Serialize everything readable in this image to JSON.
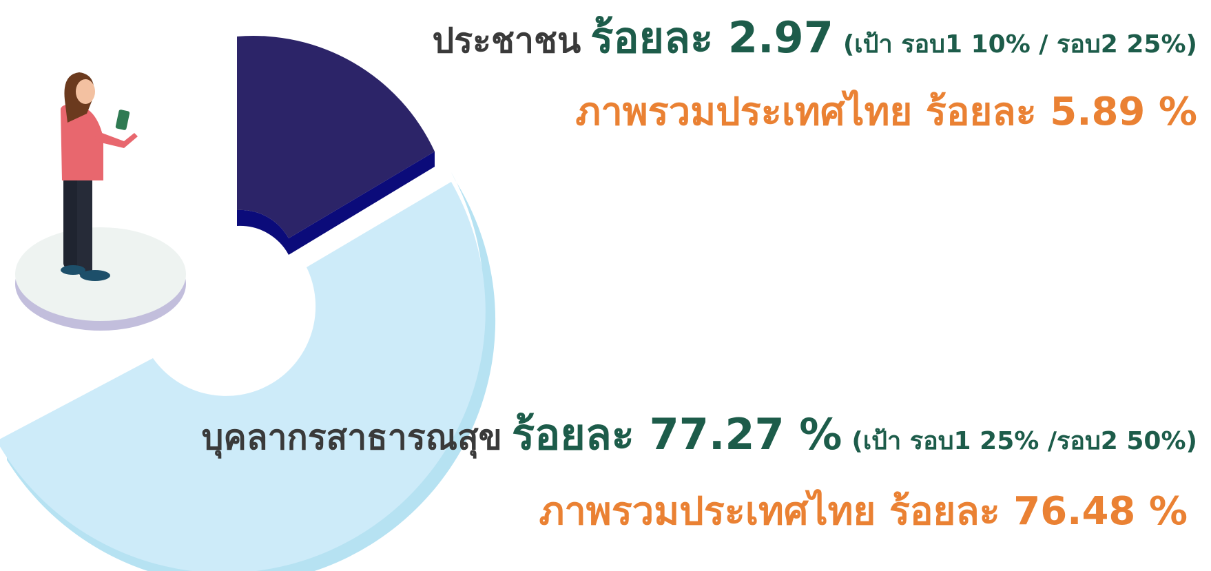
{
  "blocks": [
    {
      "group": "ประชาชน",
      "rate": "ร้อยละ 2.97",
      "target": "(เป้า รอบ1  10% / รอบ2 25%)",
      "national": "ภาพรวมประเทศไทย ร้อยละ 5.89 %"
    },
    {
      "group": "บุคลากรสาธารณสุข",
      "rate": "ร้อยละ 77.27 %",
      "target": "(เป้า รอบ1 25% /รอบ2 50%)",
      "national": "ภาพรวมประเทศไทย ร้อยละ 76.48 %"
    }
  ]
}
